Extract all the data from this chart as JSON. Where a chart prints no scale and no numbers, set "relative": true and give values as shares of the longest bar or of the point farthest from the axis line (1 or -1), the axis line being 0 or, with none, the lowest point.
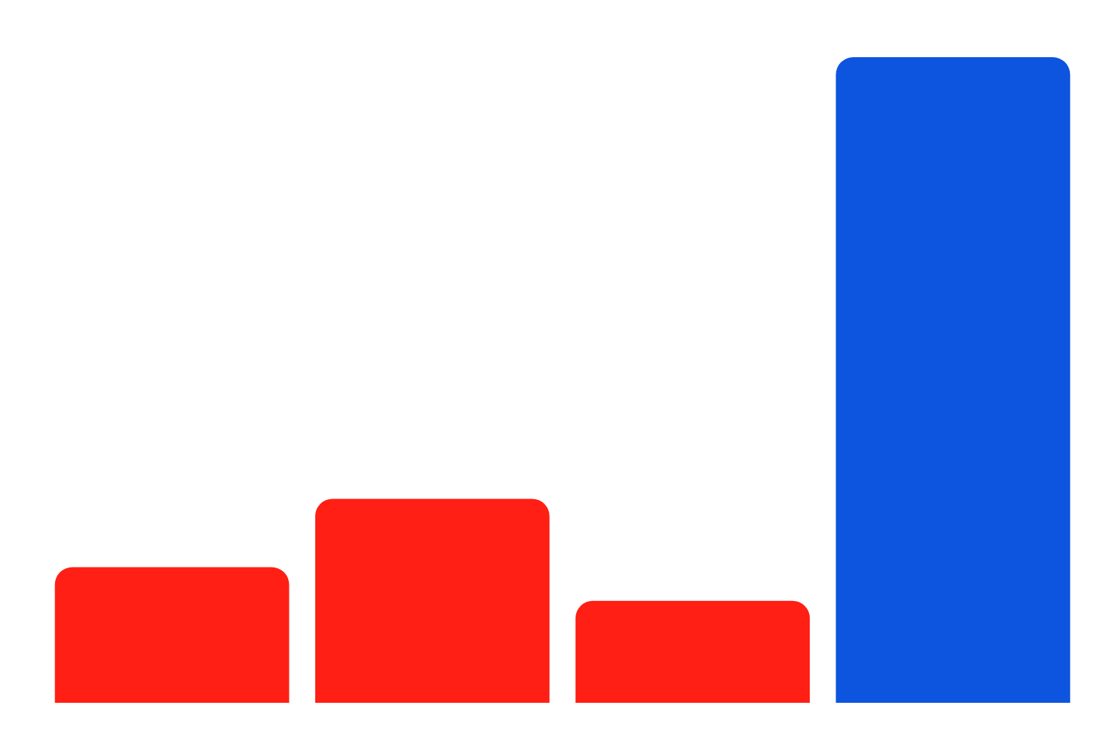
{
  "chart_data": {
    "type": "bar",
    "relative": true,
    "categories": [
      null,
      null,
      null,
      null
    ],
    "values": [
      0.21,
      0.316,
      0.158,
      1
    ],
    "colors": [
      "#ff1f14",
      "#ff1f14",
      "#ff1f14",
      "#0d55de"
    ]
  }
}
